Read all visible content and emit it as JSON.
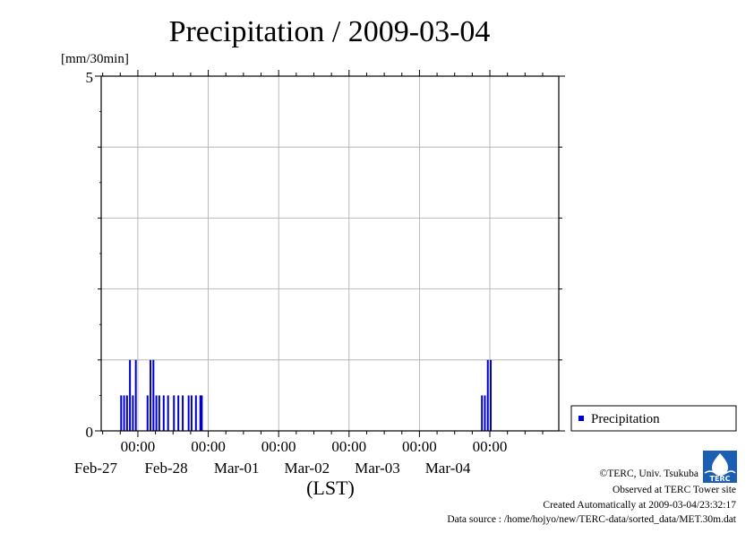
{
  "chart_data": {
    "type": "bar",
    "title": "Precipitation / 2009-03-04",
    "ylabel": "[mm/30min]",
    "xlabel": "(LST)",
    "ylim": [
      0,
      5
    ],
    "yticks": [
      "0",
      "5"
    ],
    "xlim": [
      "2009-02-26 11:30",
      "2009-03-04 23:30"
    ],
    "x_tick_labels": [
      {
        "time": "00:00",
        "date": "Feb-27"
      },
      {
        "time": "00:00",
        "date": "Feb-28"
      },
      {
        "time": "00:00",
        "date": "Mar-01"
      },
      {
        "time": "00:00",
        "date": "Mar-02"
      },
      {
        "time": "00:00",
        "date": "Mar-03"
      },
      {
        "time": "00:00",
        "date": "Mar-04"
      }
    ],
    "grid": true,
    "legend_position": "right-bottom",
    "bar_color": "#0000cc",
    "series": [
      {
        "name": "Precipitation",
        "values": [
          {
            "x": "2009-02-26 18:00",
            "y": 0.5
          },
          {
            "x": "2009-02-26 19:00",
            "y": 0.5
          },
          {
            "x": "2009-02-26 20:00",
            "y": 0.5
          },
          {
            "x": "2009-02-26 21:00",
            "y": 1.0
          },
          {
            "x": "2009-02-26 22:00",
            "y": 0.5
          },
          {
            "x": "2009-02-26 23:00",
            "y": 1.0
          },
          {
            "x": "2009-02-27 03:00",
            "y": 0.5
          },
          {
            "x": "2009-02-27 04:00",
            "y": 1.0
          },
          {
            "x": "2009-02-27 05:00",
            "y": 1.0
          },
          {
            "x": "2009-02-27 06:00",
            "y": 0.5
          },
          {
            "x": "2009-02-27 07:00",
            "y": 0.5
          },
          {
            "x": "2009-02-27 08:30",
            "y": 0.5
          },
          {
            "x": "2009-02-27 10:00",
            "y": 0.5
          },
          {
            "x": "2009-02-27 12:00",
            "y": 0.5
          },
          {
            "x": "2009-02-27 13:30",
            "y": 0.5
          },
          {
            "x": "2009-02-27 15:00",
            "y": 0.5
          },
          {
            "x": "2009-02-27 17:00",
            "y": 0.5
          },
          {
            "x": "2009-02-27 18:00",
            "y": 0.5
          },
          {
            "x": "2009-02-27 19:30",
            "y": 0.5
          },
          {
            "x": "2009-02-27 21:00",
            "y": 0.5
          },
          {
            "x": "2009-02-27 21:30",
            "y": 0.5
          },
          {
            "x": "2009-03-03 21:00",
            "y": 0.5
          },
          {
            "x": "2009-03-03 22:00",
            "y": 0.5
          },
          {
            "x": "2009-03-03 23:00",
            "y": 1.0
          },
          {
            "x": "2009-03-04 00:00",
            "y": 1.0
          }
        ]
      }
    ]
  },
  "footer": {
    "copyright": "©TERC, Univ. Tsukuba",
    "observed": "Observed at TERC Tower site",
    "created": "Created Automatically at 2009-03-04/23:32:17",
    "source": "Data source : /home/hojyo/new/TERC-data/sorted_data/MET.30m.dat"
  },
  "logo": {
    "text": "TERC",
    "color": "#1a5fb4"
  }
}
